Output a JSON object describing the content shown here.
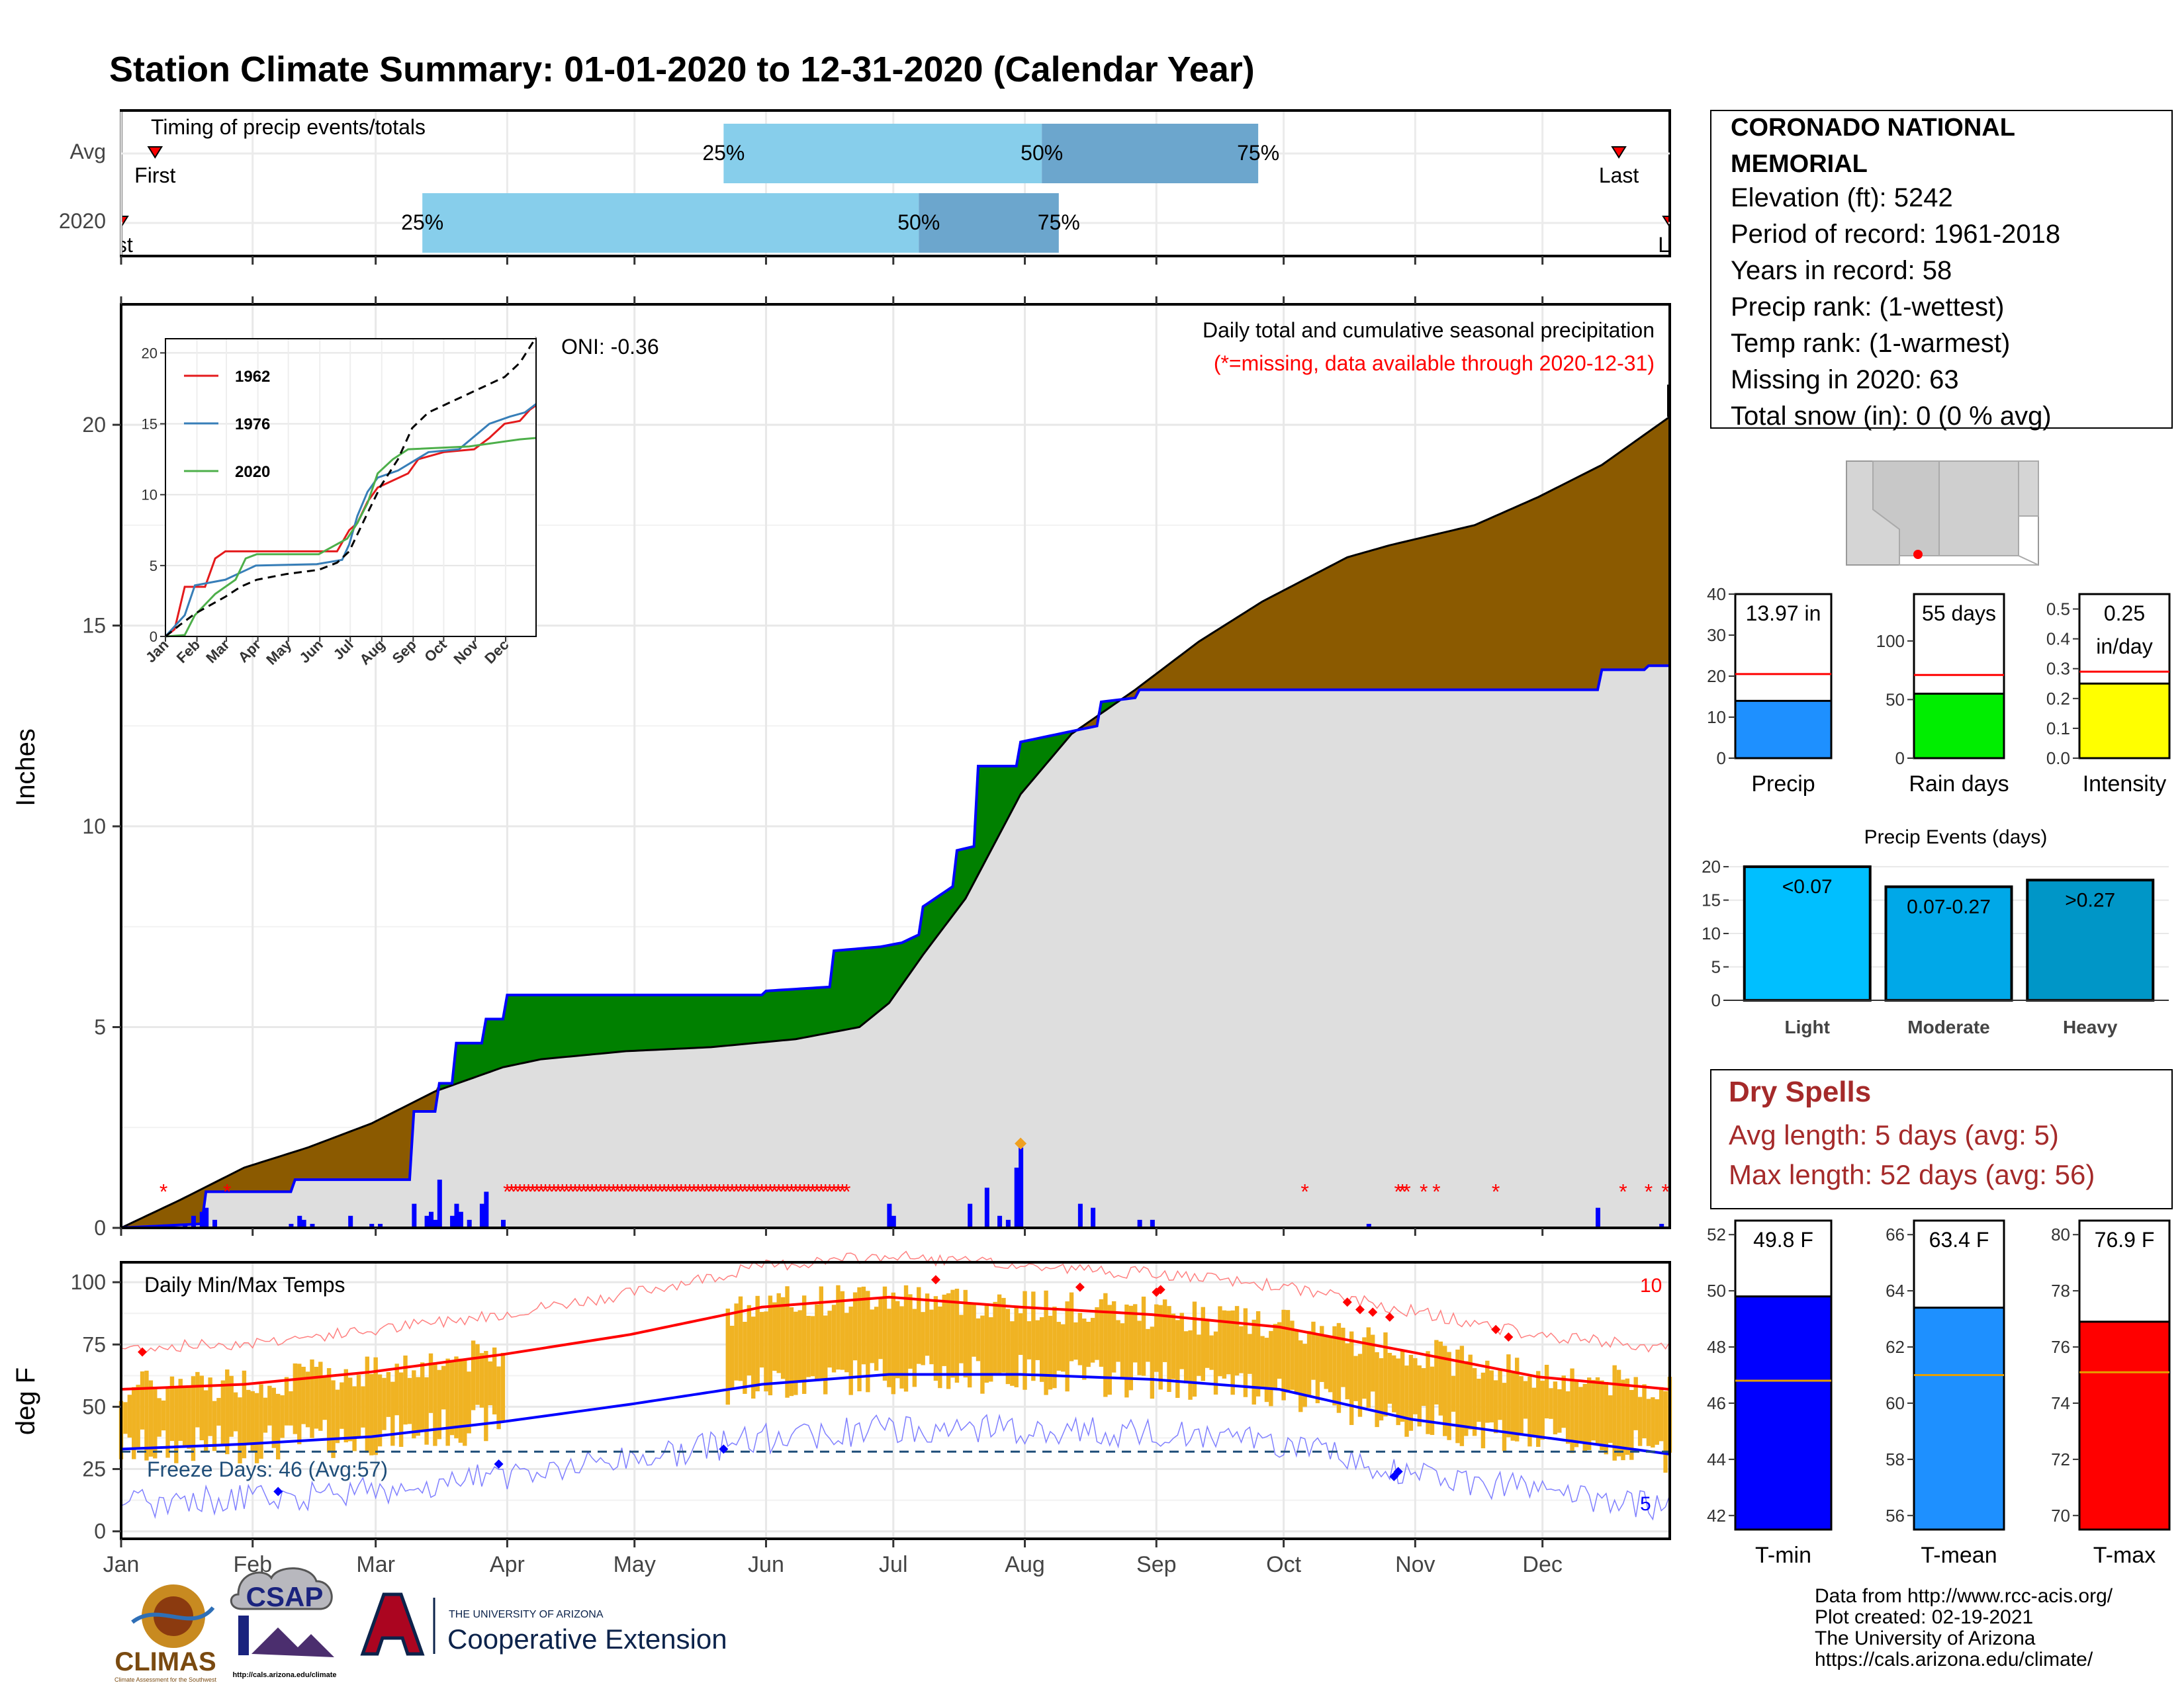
{
  "title": "Station Climate Summary: 01-01-2020 to 12-31-2020 (Calendar Year)",
  "colors": {
    "title": "#000080",
    "precip_dark": "#8B5A00",
    "precip_green": "#008000",
    "precip_gray": "#DEDEDE",
    "blue": "#0000FF",
    "red": "#FF0000",
    "temp_bar": "#F0B323",
    "light_blue": "#87CEEB",
    "steel_blue": "#6CA6CD",
    "dry_spell": "#A52A2A",
    "freeze": "#1F4E79"
  },
  "station": {
    "name_line1": "CORONADO NATIONAL",
    "name_line2": "MEMORIAL",
    "elevation": "Elevation (ft): 5242",
    "period": "Period of record: 1961-2018",
    "years": "Years in record: 58",
    "precip_rank": "Precip rank:  (1-wettest)",
    "temp_rank": "Temp rank:  (1-warmest)",
    "missing": "Missing in 2020: 63",
    "snow": "Total snow (in): 0 (0 % avg)"
  },
  "timing": {
    "title": "Timing of precip events/totals",
    "rows": [
      "Avg",
      "2020"
    ],
    "markers": {
      "first": "First",
      "last": "Last",
      "p25": "25%",
      "p50": "50%",
      "p75": "75%"
    },
    "first_2020_clipped": "rst",
    "last_2020_clipped": "La",
    "avg": {
      "first_doy": 9,
      "p25_doy": 143,
      "p50_doy": 218,
      "p75_doy": 269,
      "last_doy": 354
    },
    "y2020": {
      "first_doy": 1,
      "p25_doy": 72,
      "p50_doy": 189,
      "p75_doy": 222,
      "last_doy": 366
    }
  },
  "main": {
    "ylabel": "Inches",
    "annotation1": "Daily total and cumulative seasonal precipitation",
    "annotation2": "(*=missing, data available through 2020-12-31)",
    "oni": "ONI: -0.36"
  },
  "inset": {
    "legend": [
      "1962",
      "1976",
      "2020"
    ],
    "legend_colors": [
      "#E41A1C",
      "#377EB8",
      "#4DAF4A"
    ],
    "yticks": [
      "0",
      "5",
      "10",
      "15",
      "20"
    ],
    "xticks": [
      "Jan",
      "Feb",
      "Mar",
      "Apr",
      "May",
      "Jun",
      "Jul",
      "Aug",
      "Sep",
      "Oct",
      "Nov",
      "Dec"
    ]
  },
  "temps": {
    "title": "Daily Min/Max Temps",
    "ylabel": "deg F",
    "freeze": "Freeze Days: 46 (Avg:57)",
    "count_top": "10",
    "count_bottom": "5",
    "yticks": [
      "0",
      "25",
      "50",
      "75",
      "100"
    ]
  },
  "months": [
    "Jan",
    "Feb",
    "Mar",
    "Apr",
    "May",
    "Jun",
    "Jul",
    "Aug",
    "Sep",
    "Oct",
    "Nov",
    "Dec"
  ],
  "chart_data": [
    {
      "type": "area",
      "title": "Daily total and cumulative seasonal precipitation",
      "ylabel": "Inches",
      "ylim": [
        0,
        23
      ],
      "yticks": [
        0,
        5,
        10,
        15,
        20
      ],
      "x_units": "day of year 2020",
      "series": [
        {
          "name": "2020 cumulative",
          "x": [
            1,
            20,
            21,
            41,
            42,
            69,
            70,
            75,
            76,
            79,
            80,
            86,
            87,
            91,
            92,
            152,
            153,
            168,
            169,
            180,
            185,
            189,
            190,
            197,
            198,
            202,
            203,
            212,
            213,
            231,
            232,
            240,
            241,
            305,
            306,
            349,
            350,
            360,
            361,
            366
          ],
          "y": [
            0,
            0.1,
            0.9,
            0.9,
            1.2,
            1.2,
            2.9,
            2.9,
            3.6,
            3.6,
            4.6,
            4.6,
            5.2,
            5.2,
            5.8,
            5.8,
            5.9,
            6.0,
            6.9,
            7.0,
            7.1,
            7.3,
            8.0,
            8.5,
            9.4,
            9.5,
            11.5,
            11.5,
            12.1,
            12.5,
            13.1,
            13.2,
            13.4,
            13.4,
            13.4,
            13.4,
            13.9,
            13.9,
            14.0,
            14.0
          ]
        },
        {
          "name": "Average cumulative",
          "x": [
            1,
            15,
            30,
            45,
            60,
            75,
            91,
            100,
            120,
            140,
            160,
            175,
            182,
            190,
            200,
            213,
            225,
            240,
            255,
            270,
            290,
            300,
            320,
            335,
            350,
            366
          ],
          "y": [
            0,
            0.7,
            1.5,
            2.0,
            2.6,
            3.4,
            4.0,
            4.2,
            4.4,
            4.5,
            4.7,
            5.0,
            5.6,
            6.8,
            8.2,
            10.8,
            12.3,
            13.4,
            14.6,
            15.6,
            16.7,
            17.0,
            17.5,
            18.2,
            19.0,
            20.2
          ]
        },
        {
          "name": "daily precip",
          "x": [
            16,
            18,
            20,
            21,
            23,
            41,
            43,
            44,
            46,
            55,
            60,
            62,
            70,
            73,
            74,
            75,
            76,
            79,
            80,
            81,
            83,
            86,
            87,
            91,
            182,
            183,
            201,
            205,
            208,
            210,
            212,
            213,
            227,
            230,
            241,
            244,
            295,
            349,
            364
          ],
          "y": [
            0.1,
            0.3,
            0.4,
            0.5,
            0.2,
            0.1,
            0.3,
            0.2,
            0.1,
            0.3,
            0.1,
            0.1,
            0.6,
            0.3,
            0.4,
            0.2,
            1.2,
            0.3,
            0.6,
            0.4,
            0.2,
            0.6,
            0.9,
            0.2,
            0.6,
            0.3,
            0.6,
            1.0,
            0.3,
            0.2,
            1.5,
            2.0,
            0.6,
            0.5,
            0.2,
            0.2,
            0.1,
            0.5,
            0.1
          ]
        }
      ]
    },
    {
      "type": "bar",
      "title": "Precip",
      "categories": [
        "Precip"
      ],
      "values": [
        13.97
      ],
      "average": 20.5,
      "ylim": [
        0,
        40
      ],
      "label": "13.97 in"
    },
    {
      "type": "bar",
      "title": "Rain days",
      "categories": [
        "Rain days"
      ],
      "values": [
        55
      ],
      "average": 71,
      "ylim": [
        0,
        140
      ],
      "label": "55 days"
    },
    {
      "type": "bar",
      "title": "Intensity",
      "categories": [
        "Intensity"
      ],
      "values": [
        0.25
      ],
      "average": 0.29,
      "ylim": [
        0,
        0.55
      ],
      "label_line1": "0.25",
      "label_line2": "in/day"
    },
    {
      "type": "bar",
      "title": "Precip Events (days)",
      "categories": [
        "Light",
        "Moderate",
        "Heavy"
      ],
      "values": [
        20,
        17,
        18
      ],
      "labels": [
        "<0.07",
        "0.07-0.27",
        ">0.27"
      ],
      "colors": [
        "#00BFFF",
        "#00A8E8",
        "#0096C7"
      ],
      "ylim": [
        0,
        21
      ]
    },
    {
      "type": "line",
      "title": "Daily Min/Max Temps",
      "ylabel": "deg F",
      "ylim": [
        -3,
        108
      ],
      "x_units": "day of year 2020",
      "series": [
        {
          "name": "Normal max",
          "x": [
            1,
            30,
            60,
            91,
            121,
            152,
            182,
            213,
            244,
            274,
            305,
            335,
            366
          ],
          "y": [
            57,
            59,
            64,
            71,
            79,
            90,
            94,
            90,
            87,
            82,
            72,
            62,
            57
          ]
        },
        {
          "name": "Normal min",
          "x": [
            1,
            30,
            60,
            91,
            121,
            152,
            182,
            213,
            244,
            274,
            305,
            335,
            366
          ],
          "y": [
            33,
            35,
            38,
            44,
            51,
            59,
            63,
            63,
            61,
            57,
            45,
            38,
            31
          ]
        }
      ]
    },
    {
      "type": "bar",
      "title": "T-min",
      "categories": [
        "T-min"
      ],
      "values": [
        49.8
      ],
      "average": 46.8,
      "ylim": [
        41.5,
        52.5
      ],
      "label": "49.8 F"
    },
    {
      "type": "bar",
      "title": "T-mean",
      "categories": [
        "T-mean"
      ],
      "values": [
        63.4
      ],
      "average": 61.0,
      "ylim": [
        55.5,
        66.5
      ],
      "label": "63.4 F"
    },
    {
      "type": "bar",
      "title": "T-max",
      "categories": [
        "T-max"
      ],
      "values": [
        76.9
      ],
      "average": 75.1,
      "ylim": [
        69.5,
        80.5
      ],
      "label": "76.9 F"
    }
  ],
  "event_labels": [
    "Light",
    "Moderate",
    "Heavy"
  ],
  "panel_labels": {
    "precip": "Precip",
    "rain_days": "Rain days",
    "intensity": "Intensity",
    "tmin": "T-min",
    "tmean": "T-mean",
    "tmax": "T-max"
  },
  "precip_yticks": [
    "0",
    "10",
    "20",
    "30",
    "40"
  ],
  "raindays_yticks": [
    "0",
    "50",
    "100"
  ],
  "intensity_yticks": [
    "0.0",
    "0.1",
    "0.2",
    "0.3",
    "0.4",
    "0.5"
  ],
  "events_yticks": [
    "0",
    "5",
    "10",
    "15",
    "20"
  ],
  "tmin_yticks": [
    "42",
    "44",
    "46",
    "48",
    "50",
    "52"
  ],
  "tmean_yticks": [
    "56",
    "58",
    "60",
    "62",
    "64",
    "66"
  ],
  "tmax_yticks": [
    "70",
    "72",
    "74",
    "76",
    "78",
    "80"
  ],
  "dry_spells": {
    "title": "Dry Spells",
    "avg": "Avg length: 5 days (avg: 5)",
    "max": "Max length: 52 days (avg: 56)"
  },
  "footer": {
    "line1": "Data from http://www.rcc-acis.org/",
    "line2": "Plot created: 02-19-2021",
    "line3": "The University of Arizona",
    "line4": "https://cals.arizona.edu/climate/",
    "logo_climas": "CLIMAS",
    "logo_climas_sub": "Climate Assessment for the Southwest",
    "logo_csap": "CSAP",
    "logo_csap_url": "http://cals.arizona.edu/climate",
    "ua_line1": "THE UNIVERSITY OF ARIZONA",
    "ua_line2": "Cooperative Extension"
  }
}
